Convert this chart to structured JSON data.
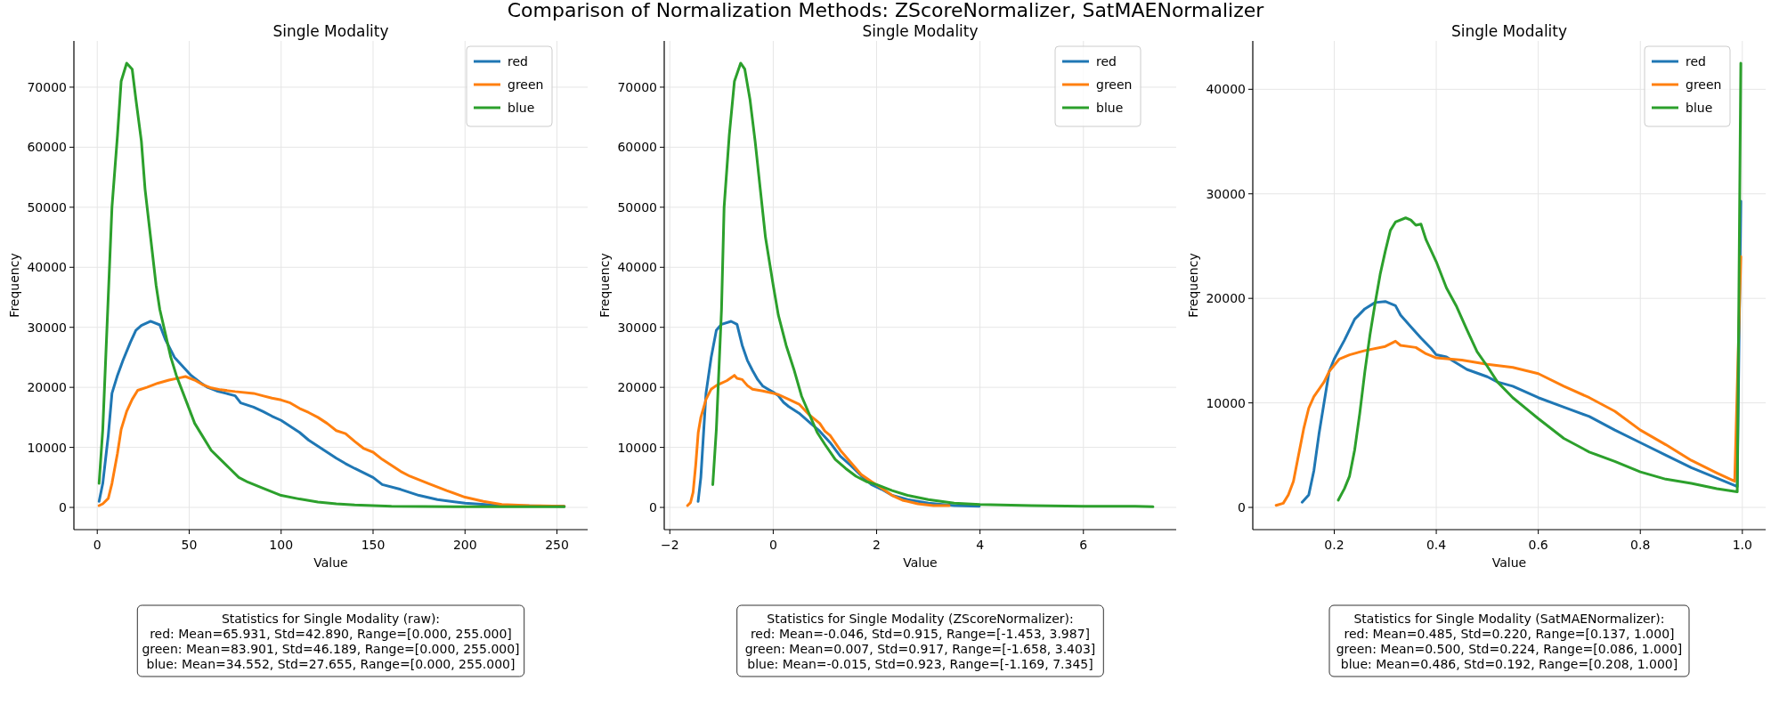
{
  "chart_data": [
    {
      "type": "other",
      "title": "Comparison of Normalization Methods: ZScoreNormalizer, SatMAENormalizer"
    },
    {
      "type": "line",
      "title": "Single Modality",
      "xlabel": "Value",
      "ylabel": "Frequency",
      "grid": true,
      "legend": "top right",
      "marker": "none",
      "line_style": "solid",
      "xlim": [
        -12.7,
        266.7
      ],
      "xticks": [
        0,
        50,
        100,
        150,
        200,
        250
      ],
      "ylim": [
        -3700,
        77700
      ],
      "yticks": [
        0,
        10000,
        20000,
        30000,
        40000,
        50000,
        60000,
        70000
      ],
      "annotations": [
        "Statistics for Single Modality (raw):\nred: Mean=65.931, Std=42.890, Range=[0.000, 255.000]\ngreen: Mean=83.901, Std=46.189, Range=[0.000, 255.000]\nblue: Mean=34.552, Std=27.655, Range=[0.000, 255.000]"
      ],
      "series": [
        {
          "name": "red",
          "color": "#1f77b4",
          "x": [
            1,
            3,
            6,
            8,
            11,
            14,
            18,
            21,
            24,
            29,
            34,
            37,
            42,
            48,
            51,
            56,
            60,
            65,
            70,
            75,
            78,
            85,
            90,
            95,
            100,
            105,
            110,
            115,
            120,
            125,
            130,
            135,
            140,
            150,
            155,
            165,
            175,
            185,
            200,
            220,
            254
          ],
          "values": [
            1000,
            4000,
            12000,
            19000,
            22000,
            24500,
            27500,
            29500,
            30300,
            31000,
            30400,
            28000,
            25000,
            23000,
            22000,
            20800,
            20000,
            19400,
            19000,
            18600,
            17400,
            16700,
            16000,
            15200,
            14500,
            13500,
            12500,
            11200,
            10200,
            9200,
            8200,
            7300,
            6500,
            5000,
            3800,
            3000,
            2000,
            1300,
            700,
            300,
            200
          ]
        },
        {
          "name": "green",
          "color": "#ff7f0e",
          "x": [
            1,
            3,
            6,
            8,
            11,
            13,
            16,
            19,
            22,
            27,
            33,
            39,
            45,
            48,
            53,
            57,
            62,
            67,
            75,
            85,
            90,
            95,
            100,
            105,
            110,
            115,
            120,
            125,
            130,
            135,
            140,
            145,
            150,
            155,
            160,
            165,
            170,
            180,
            190,
            200,
            210,
            220,
            235,
            254
          ],
          "values": [
            300,
            600,
            1500,
            4000,
            9000,
            13000,
            16000,
            18000,
            19500,
            20000,
            20700,
            21200,
            21600,
            21800,
            21200,
            20500,
            19900,
            19600,
            19300,
            19000,
            18600,
            18200,
            17900,
            17400,
            16500,
            15800,
            15000,
            14000,
            12800,
            12300,
            11000,
            9800,
            9200,
            8000,
            7000,
            6000,
            5200,
            4000,
            2800,
            1700,
            1000,
            500,
            300,
            200
          ]
        },
        {
          "name": "blue",
          "color": "#2ca02c",
          "x": [
            1,
            3,
            8,
            11,
            13,
            16,
            19,
            21,
            24,
            26,
            29,
            32,
            34,
            37,
            40,
            43,
            48,
            53,
            57,
            62,
            67,
            72,
            77,
            82,
            90,
            100,
            110,
            120,
            130,
            140,
            160,
            200,
            254
          ],
          "values": [
            4000,
            13000,
            50000,
            62000,
            71000,
            74000,
            73000,
            68000,
            61000,
            53000,
            45000,
            37000,
            33000,
            29000,
            25000,
            22000,
            18000,
            14000,
            12000,
            9500,
            8000,
            6500,
            5000,
            4200,
            3200,
            2000,
            1400,
            900,
            600,
            400,
            200,
            100,
            100
          ]
        }
      ]
    },
    {
      "type": "line",
      "title": "Single Modality",
      "xlabel": "Value",
      "ylabel": "Frequency",
      "grid": true,
      "legend": "top right",
      "marker": "none",
      "line_style": "solid",
      "xlim": [
        -2.108,
        7.795
      ],
      "xticks": [
        {
          "value": -2,
          "label": "−2"
        },
        0,
        2,
        4,
        6
      ],
      "ylim": [
        -3700,
        77700
      ],
      "yticks": [
        0,
        10000,
        20000,
        30000,
        40000,
        50000,
        60000,
        70000
      ],
      "annotations": [
        "Statistics for Single Modality (ZScoreNormalizer):\nred: Mean=-0.046, Std=0.915, Range=[-1.453, 3.987]\ngreen: Mean=0.007, Std=0.917, Range=[-1.658, 3.403]\nblue: Mean=-0.015, Std=0.923, Range=[-1.169, 7.345]"
      ],
      "series": [
        {
          "name": "red",
          "color": "#1f77b4",
          "x": [
            -1.453,
            -1.4,
            -1.3,
            -1.2,
            -1.1,
            -1.0,
            -0.815,
            -0.7,
            -0.6,
            -0.5,
            -0.4,
            -0.3,
            -0.2,
            -0.1,
            0,
            0.1,
            0.2,
            0.3,
            0.5,
            0.7,
            0.9,
            1.1,
            1.3,
            1.5,
            1.7,
            1.9,
            2.1,
            2.3,
            2.6,
            3.0,
            3.5,
            3.987
          ],
          "values": [
            1000,
            5000,
            19000,
            25000,
            29500,
            30500,
            31000,
            30500,
            27000,
            24500,
            22800,
            21300,
            20200,
            19700,
            19200,
            18600,
            17500,
            16800,
            15700,
            14200,
            12700,
            10800,
            8500,
            7000,
            5300,
            3800,
            3000,
            2000,
            1300,
            700,
            300,
            200
          ]
        },
        {
          "name": "green",
          "color": "#ff7f0e",
          "x": [
            -1.658,
            -1.6,
            -1.55,
            -1.5,
            -1.45,
            -1.4,
            -1.3,
            -1.2,
            -1.1,
            -1.0,
            -0.9,
            -0.75,
            -0.7,
            -0.6,
            -0.5,
            -0.4,
            -0.2,
            0,
            0.1,
            0.3,
            0.5,
            0.7,
            0.9,
            1.0,
            1.1,
            1.3,
            1.5,
            1.7,
            1.9,
            2.1,
            2.3,
            2.5,
            2.8,
            3.1,
            3.403
          ],
          "values": [
            300,
            800,
            2500,
            7000,
            12500,
            15000,
            18000,
            19700,
            20300,
            20700,
            21100,
            22000,
            21500,
            21300,
            20300,
            19700,
            19400,
            19000,
            18800,
            18000,
            17200,
            15400,
            14000,
            12700,
            12000,
            9500,
            7500,
            5500,
            4300,
            3200,
            2000,
            1200,
            600,
            300,
            300
          ]
        },
        {
          "name": "blue",
          "color": "#2ca02c",
          "x": [
            -1.169,
            -1.1,
            -1.0,
            -0.95,
            -0.85,
            -0.75,
            -0.63,
            -0.55,
            -0.45,
            -0.35,
            -0.25,
            -0.15,
            0,
            0.1,
            0.25,
            0.4,
            0.55,
            0.7,
            0.85,
            1.0,
            1.2,
            1.4,
            1.6,
            1.8,
            2.0,
            2.3,
            2.6,
            3.0,
            3.5,
            4.0,
            5.0,
            6.0,
            7.0,
            7.345
          ],
          "values": [
            3800,
            13000,
            33000,
            50000,
            62000,
            71000,
            74000,
            73000,
            68000,
            61000,
            53000,
            45000,
            37000,
            32000,
            27000,
            23000,
            18500,
            15500,
            12500,
            10500,
            8000,
            6500,
            5200,
            4300,
            3800,
            2800,
            2000,
            1300,
            700,
            500,
            300,
            200,
            200,
            100
          ]
        }
      ]
    },
    {
      "type": "line",
      "title": "Single Modality",
      "xlabel": "Value",
      "ylabel": "Frequency",
      "grid": true,
      "legend": "top right",
      "marker": "none",
      "line_style": "solid",
      "xlim": [
        0.0403,
        1.0457
      ],
      "xticks": [
        0.2,
        0.4,
        0.6,
        0.8,
        {
          "value": 1,
          "label": "1.0"
        }
      ],
      "ylim": [
        -2125,
        44625
      ],
      "yticks": [
        0,
        10000,
        20000,
        30000,
        40000
      ],
      "annotations": [
        "Statistics for Single Modality (SatMAENormalizer):\nred: Mean=0.485, Std=0.220, Range=[0.137, 1.000]\ngreen: Mean=0.500, Std=0.224, Range=[0.086, 1.000]\nblue: Mean=0.486, Std=0.192, Range=[0.208, 1.000]"
      ],
      "series": [
        {
          "name": "red",
          "color": "#1f77b4",
          "x": [
            0.137,
            0.15,
            0.16,
            0.17,
            0.18,
            0.19,
            0.2,
            0.22,
            0.24,
            0.26,
            0.28,
            0.3,
            0.32,
            0.33,
            0.35,
            0.37,
            0.39,
            0.4,
            0.42,
            0.44,
            0.46,
            0.5,
            0.52,
            0.55,
            0.6,
            0.65,
            0.7,
            0.75,
            0.8,
            0.85,
            0.9,
            0.95,
            0.985,
            0.99,
            0.997
          ],
          "values": [
            500,
            1200,
            3500,
            7000,
            10000,
            13000,
            14200,
            16000,
            18000,
            19000,
            19600,
            19700,
            19300,
            18400,
            17300,
            16200,
            15200,
            14600,
            14400,
            13800,
            13200,
            12500,
            12000,
            11600,
            10500,
            9600,
            8700,
            7400,
            6200,
            5000,
            3800,
            2800,
            2100,
            2000,
            29300
          ]
        },
        {
          "name": "green",
          "color": "#ff7f0e",
          "x": [
            0.086,
            0.1,
            0.11,
            0.12,
            0.13,
            0.14,
            0.15,
            0.16,
            0.17,
            0.18,
            0.19,
            0.21,
            0.23,
            0.26,
            0.3,
            0.32,
            0.33,
            0.36,
            0.38,
            0.4,
            0.45,
            0.5,
            0.55,
            0.6,
            0.65,
            0.7,
            0.75,
            0.8,
            0.85,
            0.9,
            0.95,
            0.985,
            0.997
          ],
          "values": [
            200,
            400,
            1200,
            2500,
            5000,
            7500,
            9500,
            10600,
            11300,
            12000,
            13000,
            14200,
            14600,
            15000,
            15400,
            15900,
            15500,
            15300,
            14700,
            14300,
            14100,
            13700,
            13400,
            12800,
            11600,
            10500,
            9200,
            7400,
            6000,
            4500,
            3300,
            2500,
            24000
          ]
        },
        {
          "name": "blue",
          "color": "#2ca02c",
          "x": [
            0.208,
            0.22,
            0.23,
            0.24,
            0.25,
            0.26,
            0.27,
            0.28,
            0.29,
            0.3,
            0.31,
            0.32,
            0.34,
            0.35,
            0.36,
            0.37,
            0.38,
            0.4,
            0.42,
            0.44,
            0.46,
            0.48,
            0.5,
            0.52,
            0.55,
            0.58,
            0.6,
            0.65,
            0.7,
            0.75,
            0.8,
            0.85,
            0.9,
            0.95,
            0.99,
            0.997
          ],
          "values": [
            700,
            1800,
            3000,
            5500,
            9000,
            13000,
            16500,
            19500,
            22300,
            24500,
            26500,
            27300,
            27700,
            27500,
            27000,
            27100,
            25600,
            23500,
            21000,
            19200,
            17000,
            14900,
            13500,
            12000,
            10500,
            9300,
            8500,
            6600,
            5300,
            4400,
            3400,
            2700,
            2300,
            1800,
            1500,
            42500
          ]
        }
      ]
    }
  ]
}
